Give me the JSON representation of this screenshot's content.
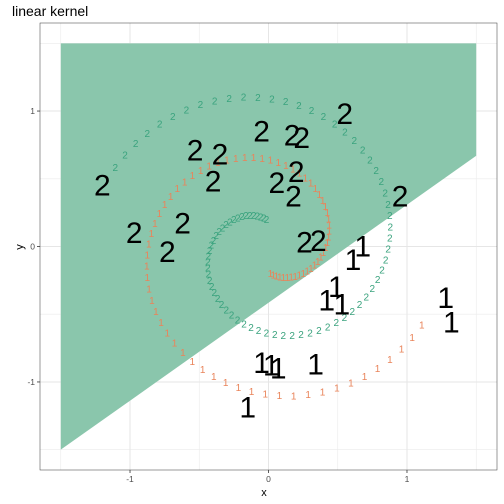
{
  "chart_data": {
    "type": "scatter",
    "title": "linear kernel",
    "xlabel": "x",
    "ylabel": "y",
    "xlim": [
      -1.65,
      1.65
    ],
    "ylim": [
      -1.65,
      1.65
    ],
    "x_ticks": [
      -1,
      0,
      1
    ],
    "y_ticks": [
      -1,
      0,
      1
    ],
    "x_tick_labels": [
      "-1",
      "0",
      "1"
    ],
    "y_tick_labels": [
      "-1",
      "0",
      "1"
    ],
    "decision_region": {
      "class": "2",
      "fill": "#8ac6ac",
      "polygon": [
        [
          -1.5,
          1.5
        ],
        [
          1.5,
          1.5
        ],
        [
          1.5,
          0.67
        ],
        [
          -1.5,
          -1.5
        ]
      ]
    },
    "class_colors": {
      "1": "#e9845a",
      "2": "#3aa37e"
    },
    "support_vector_color": "#000000",
    "spirals": [
      {
        "class": "1",
        "label": "1",
        "r0": 0.2,
        "r1": 1.25,
        "t0": -1.5,
        "t1": 5.8,
        "n": 80
      },
      {
        "class": "2",
        "label": "2",
        "r0": 0.2,
        "r1": 1.25,
        "t0": 1.64,
        "t1": 8.94,
        "n": 80
      }
    ],
    "support_vectors": [
      {
        "x": 0.55,
        "y": 0.98,
        "label": "2"
      },
      {
        "x": -0.05,
        "y": 0.85,
        "label": "2"
      },
      {
        "x": 0.17,
        "y": 0.82,
        "label": "2"
      },
      {
        "x": 0.24,
        "y": 0.8,
        "label": "2"
      },
      {
        "x": -0.53,
        "y": 0.71,
        "label": "2"
      },
      {
        "x": -0.35,
        "y": 0.68,
        "label": "2"
      },
      {
        "x": 0.2,
        "y": 0.55,
        "label": "2"
      },
      {
        "x": -1.2,
        "y": 0.45,
        "label": "2"
      },
      {
        "x": -0.4,
        "y": 0.48,
        "label": "2"
      },
      {
        "x": 0.06,
        "y": 0.47,
        "label": "2"
      },
      {
        "x": 0.18,
        "y": 0.37,
        "label": "2"
      },
      {
        "x": 0.95,
        "y": 0.37,
        "label": "2"
      },
      {
        "x": -0.62,
        "y": 0.17,
        "label": "2"
      },
      {
        "x": -0.97,
        "y": 0.1,
        "label": "2"
      },
      {
        "x": -0.73,
        "y": -0.04,
        "label": "2"
      },
      {
        "x": 0.26,
        "y": 0.03,
        "label": "2"
      },
      {
        "x": 0.36,
        "y": 0.04,
        "label": "2"
      },
      {
        "x": 0.68,
        "y": 0.0,
        "label": "1"
      },
      {
        "x": 0.61,
        "y": -0.1,
        "label": "1"
      },
      {
        "x": 0.49,
        "y": -0.3,
        "label": "1"
      },
      {
        "x": 0.42,
        "y": -0.4,
        "label": "1"
      },
      {
        "x": 0.53,
        "y": -0.43,
        "label": "1"
      },
      {
        "x": 1.28,
        "y": -0.38,
        "label": "1"
      },
      {
        "x": 1.32,
        "y": -0.56,
        "label": "1"
      },
      {
        "x": -0.05,
        "y": -0.86,
        "label": "1"
      },
      {
        "x": 0.02,
        "y": -0.88,
        "label": "1"
      },
      {
        "x": 0.07,
        "y": -0.9,
        "label": "1"
      },
      {
        "x": 0.34,
        "y": -0.87,
        "label": "1"
      },
      {
        "x": -0.15,
        "y": -1.19,
        "label": "1"
      }
    ]
  }
}
